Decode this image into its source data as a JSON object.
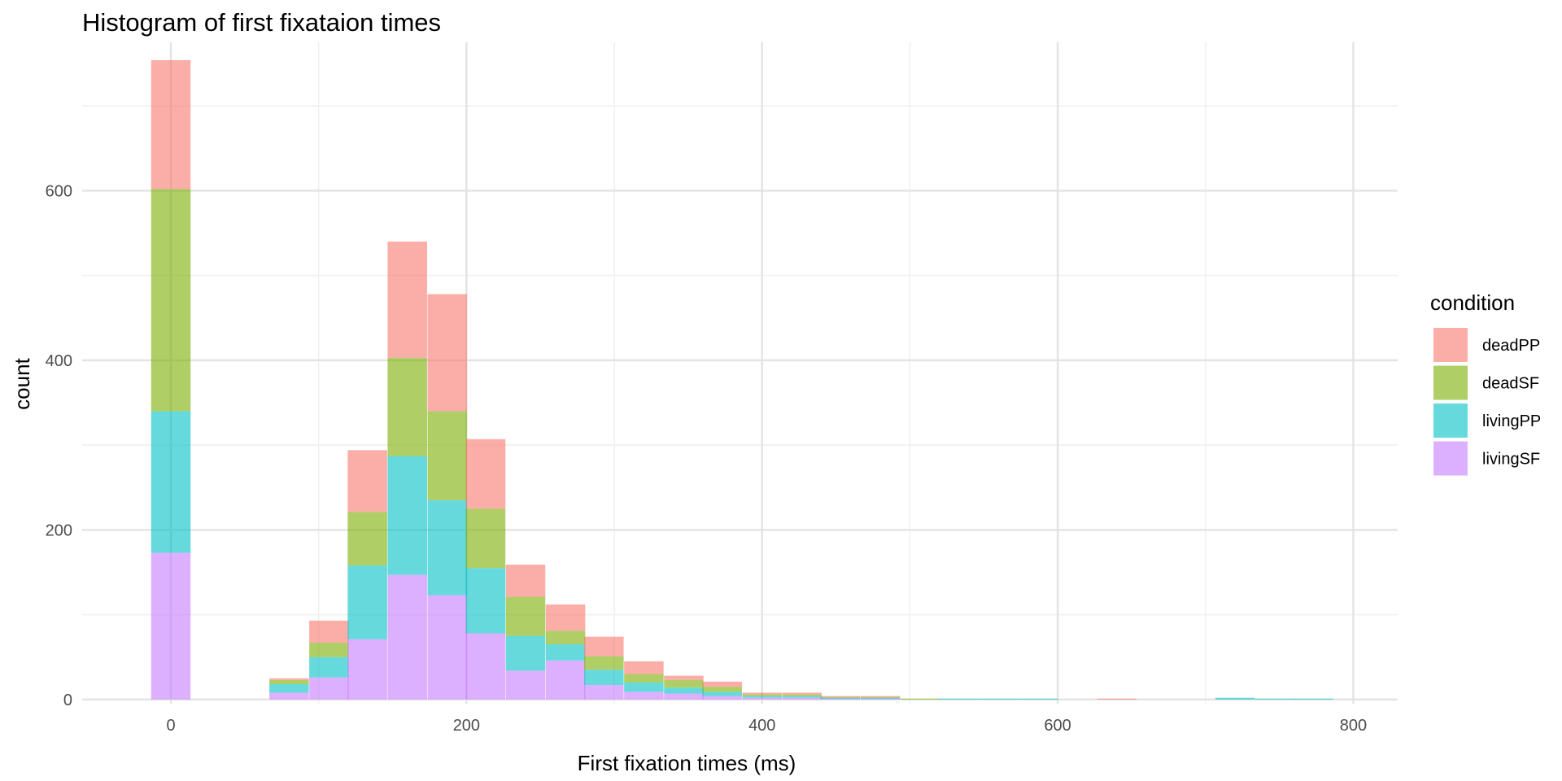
{
  "chart_data": {
    "type": "bar",
    "stacked": true,
    "title": "Histogram of first fixataion times",
    "xlabel": "First fixation times (ms)",
    "ylabel": "count",
    "xlim": [
      -60,
      830
    ],
    "ylim": [
      -5,
      775
    ],
    "x_ticks": [
      0,
      200,
      400,
      600,
      800
    ],
    "y_ticks": [
      0,
      200,
      400,
      600
    ],
    "grid": true,
    "bin_width": 26.7,
    "bin_centers": [
      0,
      80,
      107,
      133,
      160,
      187,
      213,
      240,
      267,
      293,
      320,
      347,
      373,
      400,
      427,
      453,
      480,
      507,
      533,
      560,
      587,
      640,
      720,
      747,
      773
    ],
    "legend": {
      "title": "condition",
      "position": "right"
    },
    "series": [
      {
        "name": "livingSF",
        "color": "#C77CFF",
        "values": [
          173,
          8,
          26,
          71,
          147,
          123,
          78,
          34,
          46,
          17,
          9,
          7,
          4,
          2,
          2,
          1,
          1,
          0,
          0,
          0,
          0,
          0,
          0,
          0,
          0
        ]
      },
      {
        "name": "livingPP",
        "color": "#00BFC4",
        "values": [
          167,
          10,
          24,
          87,
          140,
          112,
          77,
          41,
          19,
          18,
          11,
          7,
          5,
          2,
          2,
          1,
          1,
          0,
          1,
          1,
          1,
          0,
          2,
          1,
          1
        ]
      },
      {
        "name": "deadSF",
        "color": "#7CAE00",
        "values": [
          262,
          5,
          17,
          63,
          116,
          105,
          70,
          46,
          16,
          16,
          10,
          9,
          6,
          2,
          2,
          1,
          1,
          1,
          0,
          0,
          0,
          0,
          0,
          0,
          0
        ]
      },
      {
        "name": "deadPP",
        "color": "#F8766D",
        "values": [
          152,
          2,
          26,
          73,
          137,
          138,
          82,
          38,
          31,
          23,
          15,
          5,
          6,
          2,
          2,
          1,
          1,
          0,
          0,
          0,
          0,
          1,
          0,
          0,
          0
        ]
      }
    ],
    "legend_order": [
      "deadPP",
      "deadSF",
      "livingPP",
      "livingSF"
    ],
    "bar_opacity": 0.6,
    "background": "#ffffff",
    "grid_major_color": "#e3e3e3",
    "grid_minor_color": "#f0f0f0"
  }
}
